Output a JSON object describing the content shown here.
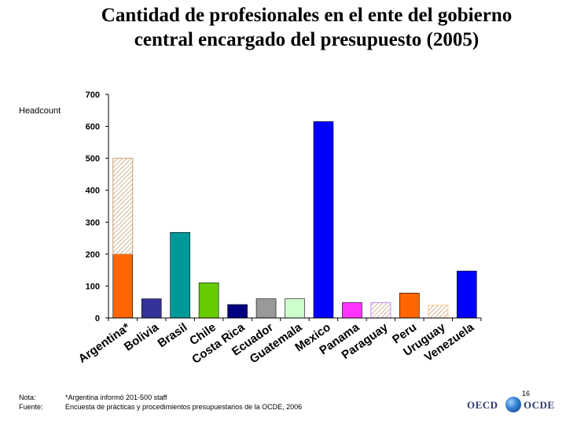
{
  "chart_data": {
    "type": "bar",
    "title": "Cantidad de profesionales en el ente del gobierno central encargado del presupuesto (2005)",
    "ylabel": "Headcount",
    "xlabel": "",
    "ylim": [
      0,
      700
    ],
    "yticks": [
      0,
      100,
      200,
      300,
      400,
      500,
      600,
      700
    ],
    "grid": false,
    "categories": [
      "Argentina*",
      "Bolivia",
      "Brasil",
      "Chile",
      "Costa Rica",
      "Ecuador",
      "Guatemala",
      "Mexico",
      "Panama",
      "Paraguay",
      "Peru",
      "Uruguay",
      "Venezuela"
    ],
    "values": [
      200,
      60,
      268,
      110,
      42,
      60,
      60,
      615,
      48,
      48,
      78,
      40,
      147
    ],
    "stacked_extra": [
      {
        "category": "Argentina*",
        "from": 200,
        "to": 500,
        "pattern": "hatched"
      }
    ],
    "colors": [
      "#ff6600",
      "#333399",
      "#009999",
      "#66cc00",
      "#000080",
      "#999999",
      "#ccffcc",
      "#0000ff",
      "#ff33ff",
      "#cc99ff",
      "#ff6600",
      "#ffcc99",
      "#0000ff"
    ],
    "hatched": [
      false,
      false,
      false,
      false,
      false,
      false,
      false,
      false,
      false,
      true,
      false,
      true,
      false
    ]
  },
  "footer": {
    "nota_label": "Nota:",
    "nota_text": "*Argentina informó 201-500 staff",
    "fuente_label": "Fuente:",
    "fuente_text": "Encuesta de prácticas y procedimientos presupuestarios de la OCDE, 2006",
    "page_number": "16"
  },
  "logo": {
    "left": "OECD",
    "right": "OCDE"
  }
}
